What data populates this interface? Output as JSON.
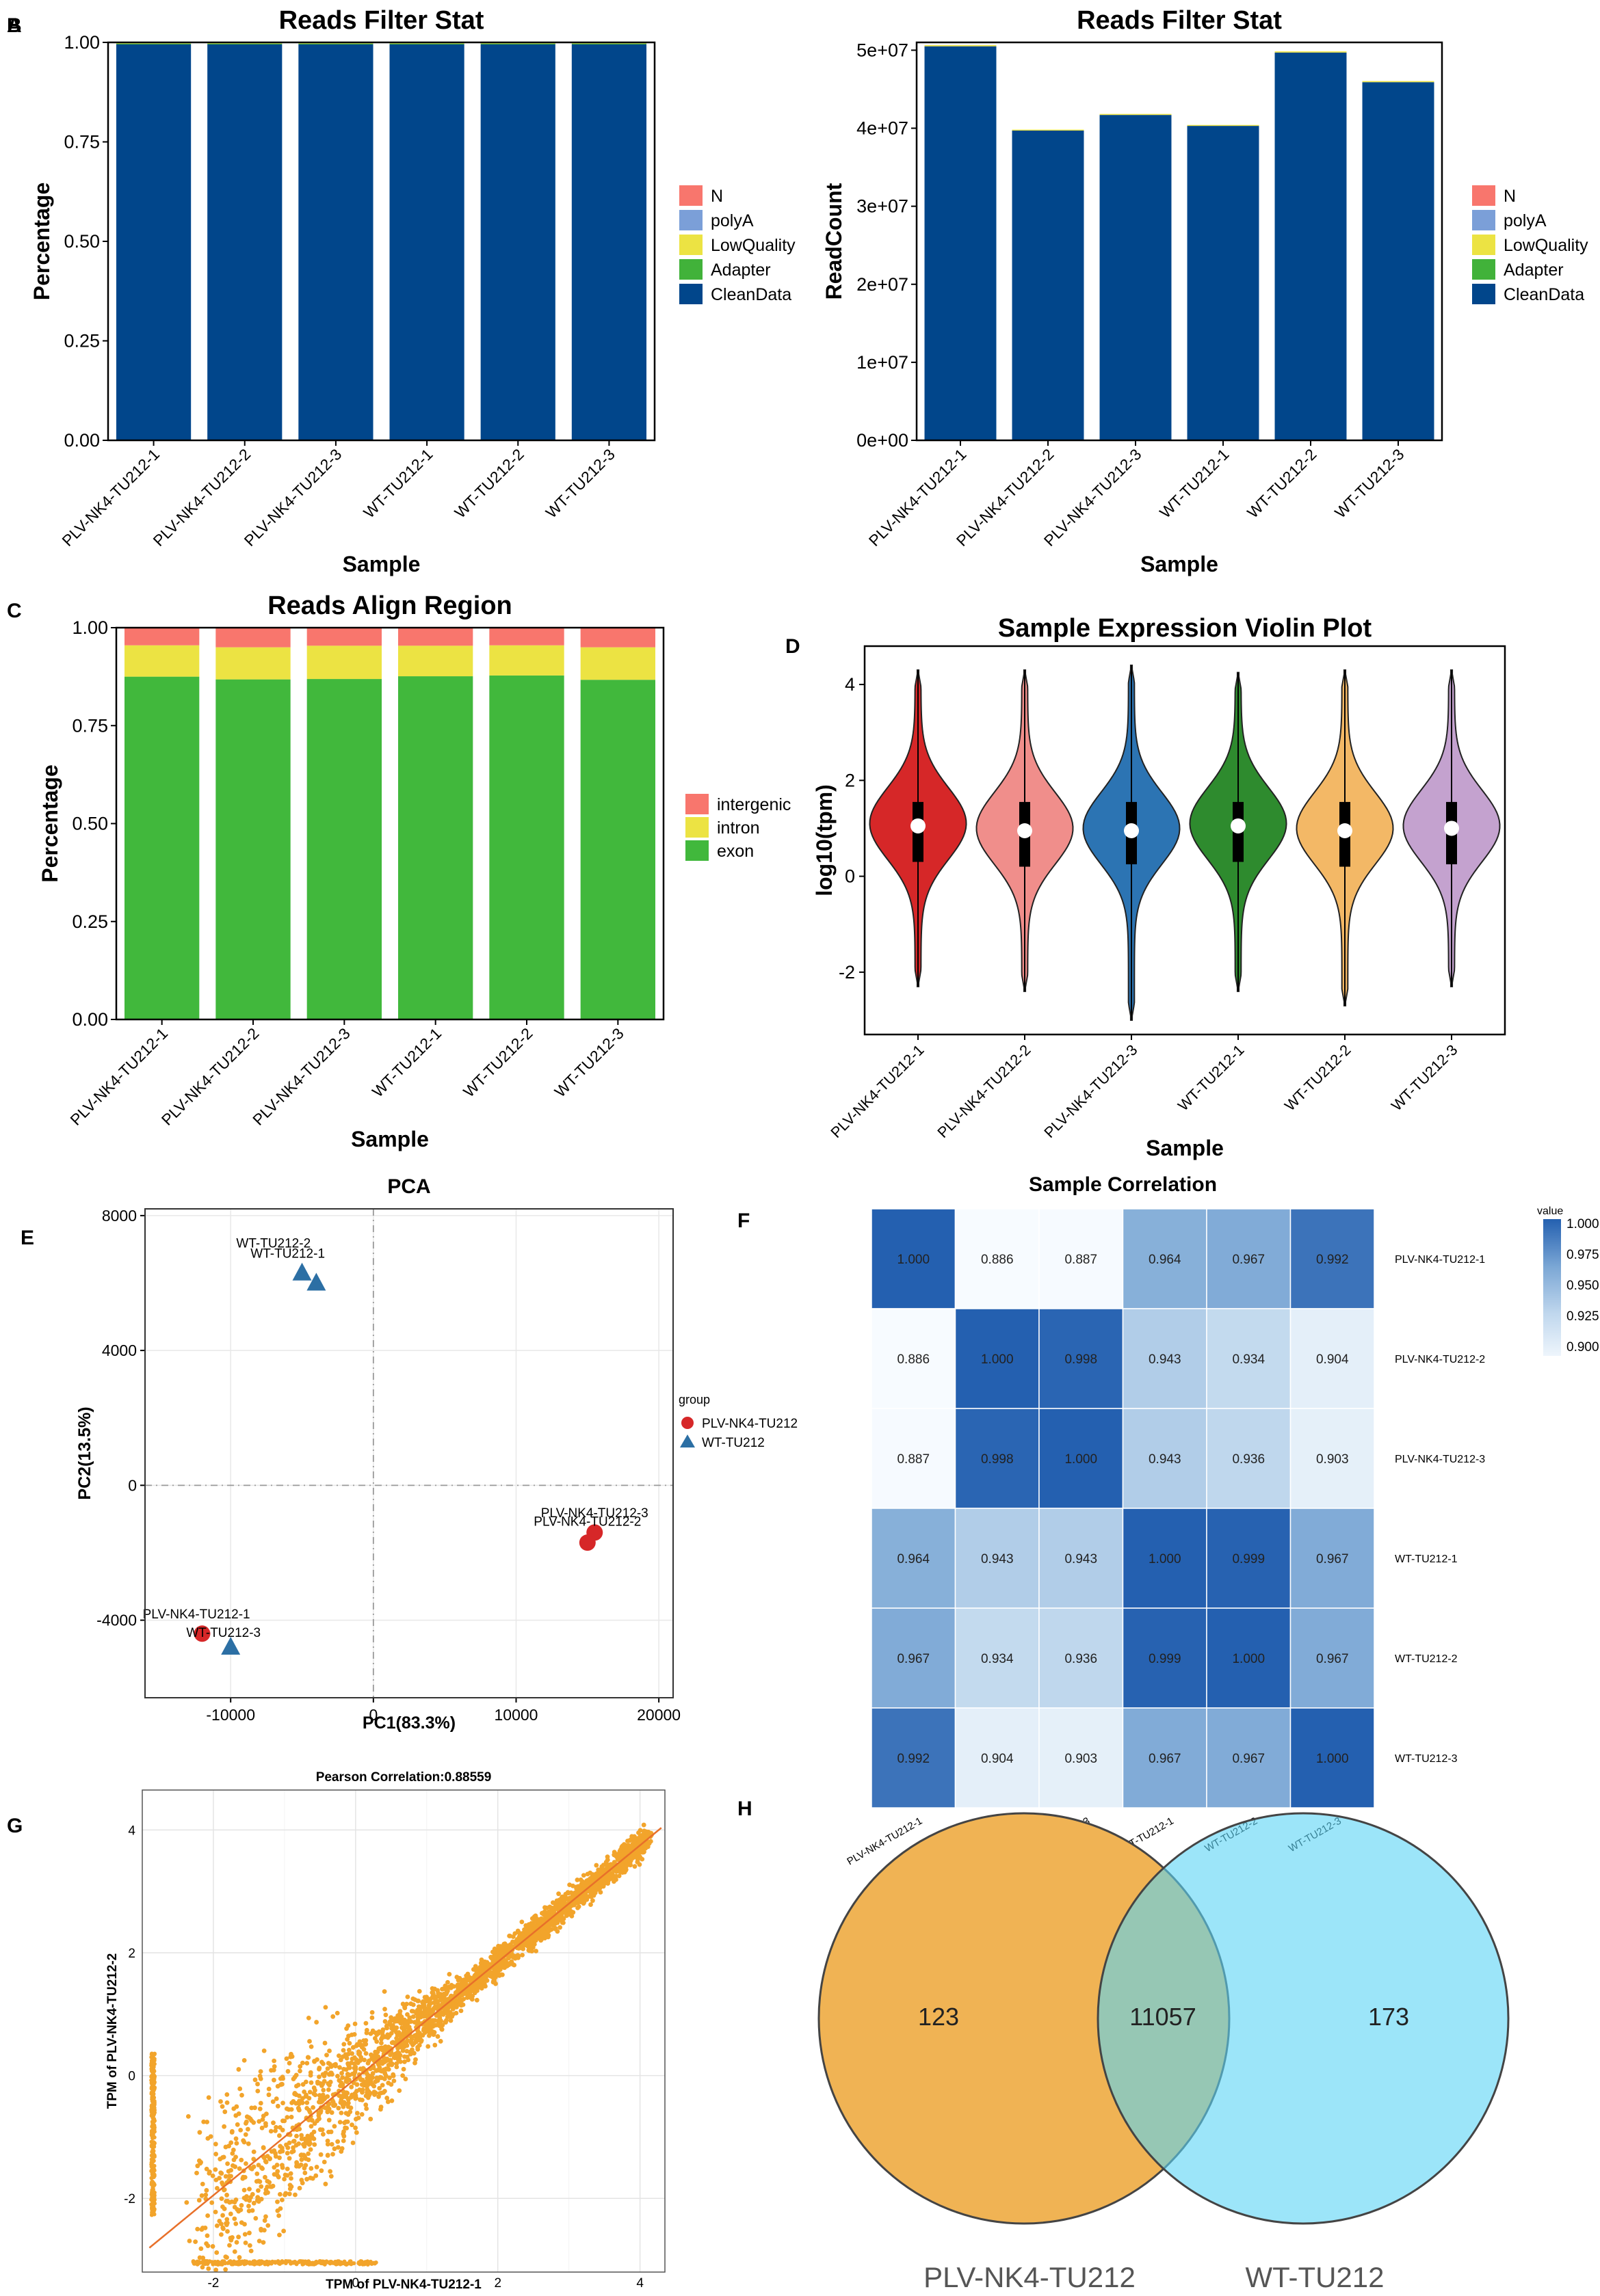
{
  "colors": {
    "N": "#f8766d",
    "polyA": "#7b9fd8",
    "LowQuality": "#ece343",
    "Adapter": "#41b23a",
    "CleanData": "#01468b",
    "intergenic": "#f8766d",
    "intron": "#ece343",
    "exon": "#41b83c",
    "violin": [
      "#d62728",
      "#f08e8b",
      "#2c74b3",
      "#2e8b2e",
      "#f3b866",
      "#c4a2cf"
    ],
    "pca_plv": "#d62728",
    "pca_wt": "#2c6fa4",
    "scatter": "#f2a42b",
    "venn_left": "#f0b354",
    "venn_right": "#5ad4f5"
  },
  "chart_data": [
    {
      "id": "A",
      "panel_label": "A",
      "type": "bar",
      "title": "Reads Filter Stat",
      "xlabel": "Sample",
      "ylabel": "Percentage",
      "categories": [
        "PLV-NK4-TU212-1",
        "PLV-NK4-TU212-2",
        "PLV-NK4-TU212-3",
        "WT-TU212-1",
        "WT-TU212-2",
        "WT-TU212-3"
      ],
      "ylim": [
        0,
        1
      ],
      "yticks": [
        "0.00",
        "0.25",
        "0.50",
        "0.75",
        "1.00"
      ],
      "legend": [
        "N",
        "polyA",
        "LowQuality",
        "Adapter",
        "CleanData"
      ],
      "series": [
        {
          "name": "CleanData",
          "values": [
            0.995,
            0.995,
            0.995,
            0.995,
            0.995,
            0.995
          ]
        },
        {
          "name": "Adapter",
          "values": [
            0.002,
            0.002,
            0.002,
            0.002,
            0.002,
            0.002
          ]
        },
        {
          "name": "LowQuality",
          "values": [
            0.003,
            0.003,
            0.003,
            0.003,
            0.003,
            0.003
          ]
        },
        {
          "name": "polyA",
          "values": [
            0,
            0,
            0,
            0,
            0,
            0
          ]
        },
        {
          "name": "N",
          "values": [
            0,
            0,
            0,
            0,
            0,
            0
          ]
        }
      ]
    },
    {
      "id": "B",
      "panel_label": "B",
      "type": "bar",
      "title": "Reads Filter Stat",
      "xlabel": "Sample",
      "ylabel": "ReadCount",
      "categories": [
        "PLV-NK4-TU212-1",
        "PLV-NK4-TU212-2",
        "PLV-NK4-TU212-3",
        "WT-TU212-1",
        "WT-TU212-2",
        "WT-TU212-3"
      ],
      "ylim": [
        0,
        51000000
      ],
      "yticks": [
        "0e+00",
        "1e+07",
        "2e+07",
        "3e+07",
        "4e+07",
        "5e+07"
      ],
      "legend": [
        "N",
        "polyA",
        "LowQuality",
        "Adapter",
        "CleanData"
      ],
      "series": [
        {
          "name": "CleanData",
          "values": [
            50500000,
            39700000,
            41700000,
            40300000,
            49700000,
            45900000
          ]
        },
        {
          "name": "LowQuality",
          "values": [
            150000,
            120000,
            130000,
            120000,
            150000,
            140000
          ]
        }
      ]
    },
    {
      "id": "C",
      "panel_label": "C",
      "type": "bar",
      "title": "Reads Align Region",
      "xlabel": "Sample",
      "ylabel": "Percentage",
      "categories": [
        "PLV-NK4-TU212-1",
        "PLV-NK4-TU212-2",
        "PLV-NK4-TU212-3",
        "WT-TU212-1",
        "WT-TU212-2",
        "WT-TU212-3"
      ],
      "ylim": [
        0,
        1
      ],
      "yticks": [
        "0.00",
        "0.25",
        "0.50",
        "0.75",
        "1.00"
      ],
      "legend": [
        "intergenic",
        "intron",
        "exon"
      ],
      "series": [
        {
          "name": "exon",
          "values": [
            0.875,
            0.868,
            0.869,
            0.876,
            0.878,
            0.867
          ]
        },
        {
          "name": "intron",
          "values": [
            0.08,
            0.082,
            0.085,
            0.078,
            0.077,
            0.083
          ]
        },
        {
          "name": "intergenic",
          "values": [
            0.045,
            0.05,
            0.046,
            0.046,
            0.045,
            0.05
          ]
        }
      ]
    },
    {
      "id": "D",
      "panel_label": "D",
      "type": "violin",
      "title": "Sample Expression Violin Plot",
      "xlabel": "Sample",
      "ylabel": "log10(tpm)",
      "categories": [
        "PLV-NK4-TU212-1",
        "PLV-NK4-TU212-2",
        "PLV-NK4-TU212-3",
        "WT-TU212-1",
        "WT-TU212-2",
        "WT-TU212-3"
      ],
      "ylim": [
        -3.3,
        4.8
      ],
      "yticks": [
        -2,
        0,
        2,
        4
      ],
      "stats": [
        {
          "min": -2.3,
          "q1": 0.3,
          "median": 1.05,
          "q3": 1.55,
          "max": 4.3
        },
        {
          "min": -2.4,
          "q1": 0.2,
          "median": 0.95,
          "q3": 1.55,
          "max": 4.3
        },
        {
          "min": -3.0,
          "q1": 0.25,
          "median": 0.95,
          "q3": 1.55,
          "max": 4.4
        },
        {
          "min": -2.4,
          "q1": 0.3,
          "median": 1.05,
          "q3": 1.55,
          "max": 4.25
        },
        {
          "min": -2.7,
          "q1": 0.2,
          "median": 0.95,
          "q3": 1.55,
          "max": 4.3
        },
        {
          "min": -2.3,
          "q1": 0.25,
          "median": 1.0,
          "q3": 1.55,
          "max": 4.3
        }
      ]
    },
    {
      "id": "E",
      "panel_label": "E",
      "type": "scatter",
      "title": "PCA",
      "xlabel": "PC1(83.3%)",
      "ylabel": "PC2(13.5%)",
      "xlim": [
        -16000,
        21000
      ],
      "ylim": [
        -6300,
        8200
      ],
      "xticks": [
        -10000,
        0,
        10000,
        20000
      ],
      "yticks": [
        -4000,
        0,
        4000,
        8000
      ],
      "legend_title": "group",
      "legend": [
        "PLV-NK4-TU212",
        "WT-TU212"
      ],
      "points": [
        {
          "label": "WT-TU212-2",
          "group": "WT-TU212",
          "x": -5000,
          "y": 6300
        },
        {
          "label": "WT-TU212-1",
          "group": "WT-TU212",
          "x": -4000,
          "y": 6000
        },
        {
          "label": "PLV-NK4-TU212-3",
          "group": "PLV-NK4-TU212",
          "x": 15500,
          "y": -1400
        },
        {
          "label": "PLV-NK4-TU212-2",
          "group": "PLV-NK4-TU212",
          "x": 15000,
          "y": -1700
        },
        {
          "label": "PLV-NK4-TU212-1",
          "group": "PLV-NK4-TU212",
          "x": -12000,
          "y": -4400
        },
        {
          "label": "WT-TU212-3",
          "group": "WT-TU212",
          "x": -10000,
          "y": -4800
        }
      ]
    },
    {
      "id": "F",
      "panel_label": "F",
      "type": "heatmap",
      "title": "Sample Correlation",
      "labels": [
        "PLV-NK4-TU212-1",
        "PLV-NK4-TU212-2",
        "PLV-NK4-TU212-3",
        "WT-TU212-1",
        "WT-TU212-2",
        "WT-TU212-3"
      ],
      "matrix": [
        [
          "1.000",
          "0.886",
          "0.887",
          "0.964",
          "0.967",
          "0.992"
        ],
        [
          "0.886",
          "1.000",
          "0.998",
          "0.943",
          "0.934",
          "0.904"
        ],
        [
          "0.887",
          "0.998",
          "1.000",
          "0.943",
          "0.936",
          "0.903"
        ],
        [
          "0.964",
          "0.943",
          "0.943",
          "1.000",
          "0.999",
          "0.967"
        ],
        [
          "0.967",
          "0.934",
          "0.936",
          "0.999",
          "1.000",
          "0.967"
        ],
        [
          "0.992",
          "0.904",
          "0.903",
          "0.967",
          "0.967",
          "1.000"
        ]
      ],
      "legend_title": "value",
      "legend_ticks": [
        "1.000",
        "0.975",
        "0.950",
        "0.925",
        "0.900"
      ],
      "vrange": [
        0.886,
        1.0
      ]
    },
    {
      "id": "G",
      "panel_label": "G",
      "type": "scatter",
      "title": "Pearson Correlation:0.88559",
      "xlabel": "TPM of PLV-NK4-TU212-1",
      "ylabel": "TPM of PLV-NK4-TU212-2",
      "xlim": [
        -3.0,
        4.35
      ],
      "ylim": [
        -3.2,
        4.65
      ],
      "xticks": [
        -2,
        0,
        2,
        4
      ],
      "yticks": [
        -2,
        0,
        2,
        4
      ],
      "fit_line": {
        "slope": 0.95,
        "intercept": -0.05
      }
    },
    {
      "id": "H",
      "panel_label": "H",
      "type": "venn",
      "sets": [
        "PLV-NK4-TU212",
        "WT-TU212"
      ],
      "counts": {
        "left_only": "123",
        "both": "11057",
        "right_only": "173"
      }
    }
  ]
}
